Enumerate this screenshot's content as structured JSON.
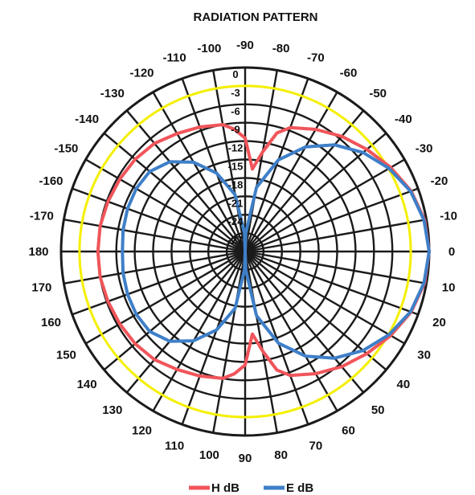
{
  "chart_data": {
    "type": "polar-line",
    "title": "RADIATION PATTERN",
    "angle_tick_labels": [
      "-90",
      "-80",
      "-70",
      "-60",
      "-50",
      "-40",
      "-30",
      "-20",
      "-10",
      "0",
      "10",
      "20",
      "30",
      "40",
      "50",
      "60",
      "70",
      "80",
      "90",
      "100",
      "110",
      "120",
      "130",
      "140",
      "150",
      "160",
      "170",
      "180",
      "-170",
      "-160",
      "-150",
      "-140",
      "-130",
      "-120",
      "-110",
      "-100"
    ],
    "angle_ticks": [
      -90,
      -80,
      -70,
      -60,
      -50,
      -40,
      -30,
      -20,
      -10,
      0,
      10,
      20,
      30,
      40,
      50,
      60,
      70,
      80,
      90,
      100,
      110,
      120,
      130,
      140,
      150,
      160,
      170,
      180,
      -170,
      -160,
      -150,
      -140,
      -130,
      -120,
      -110,
      -100
    ],
    "radial_tick_labels": [
      "0",
      "-3",
      "-6",
      "-9",
      "-12",
      "-15",
      "-18",
      "-21",
      "-24",
      "-27"
    ],
    "radial_ticks": [
      0,
      -3,
      -6,
      -9,
      -12,
      -15,
      -18,
      -21,
      -24,
      -27
    ],
    "radial_range": [
      -30,
      0
    ],
    "grid": true,
    "reference_circle": {
      "value": -3,
      "color": "#f5f000"
    },
    "legend_position": "bottom",
    "series": [
      {
        "name": "H dB",
        "color": "#f0555a",
        "points": [
          [
            0,
            0
          ],
          [
            10,
            -0.3
          ],
          [
            20,
            -1.2
          ],
          [
            30,
            -2.6
          ],
          [
            40,
            -4.1
          ],
          [
            50,
            -5.5
          ],
          [
            60,
            -7.0
          ],
          [
            70,
            -8.5
          ],
          [
            75,
            -10.0
          ],
          [
            80,
            -13.5
          ],
          [
            85,
            -16.5
          ],
          [
            90,
            -11.5
          ],
          [
            95,
            -10.0
          ],
          [
            100,
            -9.0
          ],
          [
            110,
            -8.4
          ],
          [
            120,
            -7.8
          ],
          [
            130,
            -7.0
          ],
          [
            140,
            -6.6
          ],
          [
            150,
            -6.4
          ],
          [
            160,
            -6.2
          ],
          [
            170,
            -6.0
          ],
          [
            180,
            -6.0
          ],
          [
            190,
            -6.0
          ],
          [
            200,
            -6.2
          ],
          [
            210,
            -6.4
          ],
          [
            220,
            -6.6
          ],
          [
            230,
            -7.0
          ],
          [
            240,
            -7.8
          ],
          [
            250,
            -8.4
          ],
          [
            260,
            -9.0
          ],
          [
            265,
            -10.0
          ],
          [
            270,
            -11.5
          ],
          [
            275,
            -16.5
          ],
          [
            280,
            -13.5
          ],
          [
            285,
            -10.0
          ],
          [
            290,
            -8.5
          ],
          [
            300,
            -7.0
          ],
          [
            310,
            -5.5
          ],
          [
            320,
            -4.1
          ],
          [
            330,
            -2.6
          ],
          [
            340,
            -1.2
          ],
          [
            350,
            -0.3
          ],
          [
            360,
            0
          ]
        ]
      },
      {
        "name": "E dB",
        "color": "#3e7fc8",
        "points": [
          [
            0,
            0
          ],
          [
            10,
            -0.4
          ],
          [
            20,
            -1.3
          ],
          [
            30,
            -2.9
          ],
          [
            40,
            -4.9
          ],
          [
            50,
            -7.3
          ],
          [
            60,
            -10.3
          ],
          [
            70,
            -14.1
          ],
          [
            80,
            -19.4
          ],
          [
            88,
            -27.0
          ],
          [
            90,
            -30.0
          ],
          [
            92,
            -27.0
          ],
          [
            100,
            -20.6
          ],
          [
            110,
            -16.4
          ],
          [
            120,
            -13.2
          ],
          [
            130,
            -10.9
          ],
          [
            140,
            -9.7
          ],
          [
            150,
            -9.5
          ],
          [
            160,
            -9.6
          ],
          [
            170,
            -9.8
          ],
          [
            180,
            -10.0
          ],
          [
            190,
            -9.8
          ],
          [
            200,
            -9.6
          ],
          [
            210,
            -9.5
          ],
          [
            220,
            -9.7
          ],
          [
            230,
            -10.9
          ],
          [
            240,
            -13.2
          ],
          [
            250,
            -16.4
          ],
          [
            260,
            -20.6
          ],
          [
            268,
            -27.0
          ],
          [
            270,
            -30.0
          ],
          [
            272,
            -27.0
          ],
          [
            280,
            -19.4
          ],
          [
            290,
            -14.1
          ],
          [
            300,
            -10.3
          ],
          [
            310,
            -7.3
          ],
          [
            320,
            -4.9
          ],
          [
            330,
            -2.9
          ],
          [
            340,
            -1.3
          ],
          [
            350,
            -0.4
          ],
          [
            360,
            0
          ]
        ]
      }
    ]
  }
}
